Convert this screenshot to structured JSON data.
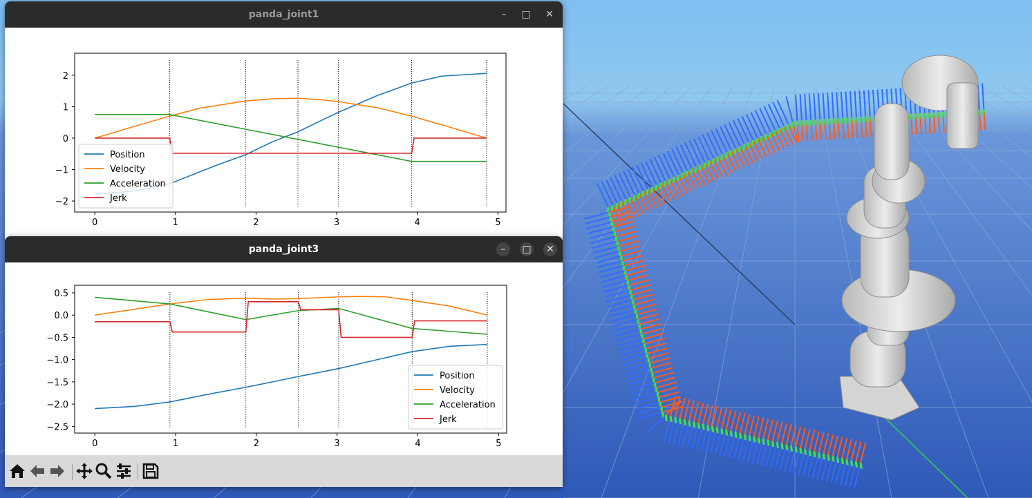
{
  "windows": [
    {
      "title": "panda_joint1",
      "state": "inactive",
      "chart_data": {
        "type": "line",
        "xlim": [
          -0.25,
          5.1
        ],
        "ylim": [
          -2.35,
          2.7
        ],
        "xticks": [
          0,
          1,
          2,
          3,
          4,
          5
        ],
        "yticks": [
          -2,
          -1,
          0,
          1,
          2
        ],
        "phase_lines_x": [
          0.93,
          1.87,
          2.52,
          3.02,
          3.93,
          4.86
        ],
        "legend": "lower-left",
        "grid": false,
        "series": [
          {
            "name": "Position",
            "color": "#1f77b4",
            "x": [
              0,
              0.5,
              0.93,
              1.5,
              1.87,
              2.2,
              2.52,
              2.8,
              3.02,
              3.5,
              3.93,
              4.3,
              4.86
            ],
            "y": [
              -1.78,
              -1.68,
              -1.45,
              -0.87,
              -0.53,
              -0.12,
              0.2,
              0.55,
              0.82,
              1.35,
              1.75,
              1.97,
              2.06
            ]
          },
          {
            "name": "Velocity",
            "color": "#ff7f0e",
            "x": [
              0,
              0.5,
              0.93,
              1.3,
              1.87,
              2.2,
              2.52,
              2.8,
              3.02,
              3.5,
              3.93,
              4.4,
              4.86
            ],
            "y": [
              0,
              0.38,
              0.7,
              0.95,
              1.18,
              1.25,
              1.27,
              1.22,
              1.16,
              0.97,
              0.7,
              0.35,
              0
            ]
          },
          {
            "name": "Acceleration",
            "color": "#2ca02c",
            "x": [
              0,
              0.93,
              3.93,
              4.86
            ],
            "y": [
              0.75,
              0.75,
              -0.74,
              -0.74
            ]
          },
          {
            "name": "Jerk",
            "color": "#d62728",
            "x": [
              0,
              0.93,
              0.96,
              3.93,
              3.96,
              4.86
            ],
            "y": [
              0,
              0,
              -0.48,
              -0.48,
              0,
              0
            ]
          }
        ]
      }
    },
    {
      "title": "panda_joint3",
      "state": "active",
      "chart_data": {
        "type": "line",
        "xlim": [
          -0.25,
          5.1
        ],
        "ylim": [
          -2.65,
          0.67
        ],
        "xticks": [
          0,
          1,
          2,
          3,
          4,
          5
        ],
        "yticks": [
          0.5,
          0.0,
          -0.5,
          -1.0,
          -1.5,
          -2.0,
          -2.5
        ],
        "phase_lines_x": [
          0.93,
          1.87,
          2.52,
          3.02,
          3.93,
          4.86
        ],
        "legend": "lower-right",
        "grid": false,
        "series": [
          {
            "name": "Position",
            "color": "#1f77b4",
            "x": [
              0,
              0.5,
              0.93,
              1.4,
              1.87,
              2.2,
              2.52,
              2.8,
              3.02,
              3.5,
              3.93,
              4.4,
              4.86
            ],
            "y": [
              -2.1,
              -2.05,
              -1.95,
              -1.78,
              -1.62,
              -1.5,
              -1.38,
              -1.28,
              -1.2,
              -1.0,
              -0.82,
              -0.7,
              -0.66
            ]
          },
          {
            "name": "Velocity",
            "color": "#ff7f0e",
            "x": [
              0,
              0.93,
              1.4,
              1.87,
              2.2,
              2.52,
              3.02,
              3.3,
              3.6,
              3.93,
              4.4,
              4.86
            ],
            "y": [
              0,
              0.25,
              0.35,
              0.38,
              0.36,
              0.37,
              0.41,
              0.42,
              0.41,
              0.33,
              0.2,
              0
            ]
          },
          {
            "name": "Acceleration",
            "color": "#2ca02c",
            "x": [
              0,
              0.93,
              1.87,
              2.52,
              3.02,
              3.93,
              4.86
            ],
            "y": [
              0.4,
              0.25,
              -0.1,
              0.1,
              0.15,
              -0.3,
              -0.43
            ]
          },
          {
            "name": "Jerk",
            "color": "#d62728",
            "x": [
              0,
              0.93,
              0.96,
              1.87,
              1.9,
              2.52,
              2.55,
              3.02,
              3.05,
              3.93,
              3.96,
              4.86
            ],
            "y": [
              -0.15,
              -0.15,
              -0.38,
              -0.38,
              0.3,
              0.3,
              0.12,
              0.12,
              -0.5,
              -0.5,
              -0.13,
              -0.13
            ]
          }
        ]
      }
    }
  ],
  "toolbar": [
    {
      "id": "home",
      "icon": "home-icon"
    },
    {
      "id": "back",
      "icon": "back-arrow-icon"
    },
    {
      "id": "forward",
      "icon": "forward-arrow-icon"
    },
    {
      "id": "pan",
      "icon": "move-icon"
    },
    {
      "id": "zoom",
      "icon": "zoom-icon"
    },
    {
      "id": "configure",
      "icon": "sliders-icon"
    },
    {
      "id": "save",
      "icon": "save-icon"
    }
  ],
  "window_controls": {
    "minimize": "–",
    "maximize": "□",
    "close": "✕"
  },
  "colors": {
    "sky": "#87c3ec",
    "floor": "#3b6bc8",
    "titlebar": "#2b2b2b",
    "toolbar": "#d9d9d9"
  }
}
